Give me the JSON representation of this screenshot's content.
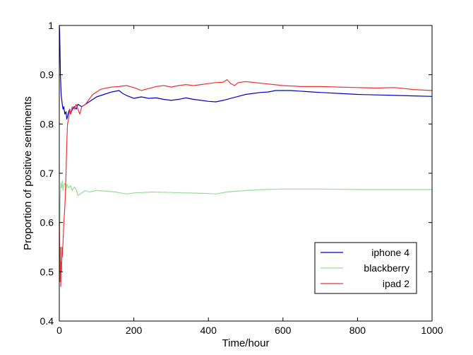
{
  "chart_data": {
    "type": "line",
    "title": "",
    "xlabel": "Time/hour",
    "ylabel": "Proportion of positive sentiments",
    "xlim": [
      0,
      1000
    ],
    "ylim": [
      0.4,
      1.0
    ],
    "x_ticks": [
      0,
      200,
      400,
      600,
      800,
      1000
    ],
    "y_ticks": [
      0.4,
      0.5,
      0.6,
      0.7,
      0.8,
      0.9,
      1.0
    ],
    "x_tick_labels": [
      "0",
      "200",
      "400",
      "600",
      "800",
      "1000"
    ],
    "y_tick_labels": [
      "0.4",
      "0.5",
      "0.6",
      "0.7",
      "0.8",
      "0.9",
      "1"
    ],
    "grid": false,
    "legend_position": "bottom-right",
    "series": [
      {
        "name": "iphone 4",
        "color": "#0000cc",
        "x": [
          0,
          1,
          3,
          5,
          8,
          10,
          12,
          15,
          18,
          20,
          22,
          25,
          28,
          30,
          35,
          40,
          45,
          50,
          60,
          70,
          80,
          90,
          100,
          120,
          140,
          160,
          170,
          180,
          200,
          220,
          240,
          260,
          280,
          300,
          320,
          340,
          360,
          380,
          400,
          420,
          440,
          460,
          480,
          500,
          520,
          540,
          560,
          580,
          600,
          620,
          640,
          660,
          680,
          700,
          750,
          800,
          850,
          900,
          950,
          1000
        ],
        "y": [
          1.0,
          0.99,
          0.9,
          0.86,
          0.84,
          0.83,
          0.835,
          0.82,
          0.825,
          0.81,
          0.815,
          0.825,
          0.83,
          0.82,
          0.83,
          0.835,
          0.83,
          0.84,
          0.835,
          0.84,
          0.845,
          0.85,
          0.855,
          0.86,
          0.865,
          0.868,
          0.862,
          0.858,
          0.852,
          0.855,
          0.852,
          0.853,
          0.85,
          0.848,
          0.85,
          0.853,
          0.85,
          0.848,
          0.846,
          0.845,
          0.848,
          0.852,
          0.856,
          0.86,
          0.862,
          0.864,
          0.865,
          0.868,
          0.868,
          0.868,
          0.867,
          0.866,
          0.865,
          0.864,
          0.862,
          0.86,
          0.859,
          0.858,
          0.857,
          0.856
        ]
      },
      {
        "name": "blackberry",
        "color": "#99dd99",
        "x": [
          0,
          2,
          4,
          6,
          8,
          10,
          12,
          15,
          18,
          20,
          25,
          30,
          35,
          40,
          45,
          50,
          60,
          70,
          80,
          100,
          120,
          150,
          180,
          200,
          250,
          300,
          350,
          400,
          420,
          450,
          500,
          550,
          600,
          650,
          700,
          800,
          900,
          1000
        ],
        "y": [
          0.5,
          0.64,
          0.68,
          0.67,
          0.685,
          0.665,
          0.675,
          0.68,
          0.665,
          0.678,
          0.67,
          0.675,
          0.665,
          0.672,
          0.668,
          0.655,
          0.66,
          0.665,
          0.662,
          0.665,
          0.664,
          0.662,
          0.658,
          0.66,
          0.662,
          0.661,
          0.66,
          0.659,
          0.658,
          0.662,
          0.665,
          0.667,
          0.668,
          0.668,
          0.668,
          0.667,
          0.667,
          0.667
        ]
      },
      {
        "name": "ipad 2",
        "color": "#ee3333",
        "x": [
          0,
          2,
          3,
          4,
          5,
          6,
          7,
          8,
          10,
          12,
          14,
          16,
          18,
          20,
          22,
          25,
          28,
          30,
          35,
          40,
          45,
          50,
          55,
          60,
          70,
          80,
          90,
          100,
          110,
          120,
          140,
          160,
          180,
          200,
          220,
          240,
          260,
          280,
          300,
          320,
          340,
          360,
          380,
          400,
          420,
          440,
          450,
          460,
          470,
          480,
          500,
          550,
          600,
          650,
          700,
          750,
          800,
          850,
          900,
          950,
          1000
        ],
        "y": [
          0.6,
          0.48,
          0.55,
          0.47,
          0.52,
          0.5,
          0.55,
          0.53,
          0.56,
          0.6,
          0.62,
          0.65,
          0.7,
          0.76,
          0.8,
          0.81,
          0.83,
          0.82,
          0.835,
          0.83,
          0.84,
          0.83,
          0.82,
          0.835,
          0.84,
          0.85,
          0.86,
          0.865,
          0.87,
          0.872,
          0.875,
          0.876,
          0.878,
          0.874,
          0.868,
          0.872,
          0.876,
          0.878,
          0.875,
          0.878,
          0.88,
          0.878,
          0.88,
          0.882,
          0.884,
          0.885,
          0.89,
          0.882,
          0.878,
          0.884,
          0.886,
          0.882,
          0.878,
          0.876,
          0.876,
          0.875,
          0.874,
          0.873,
          0.874,
          0.87,
          0.868
        ]
      }
    ]
  }
}
